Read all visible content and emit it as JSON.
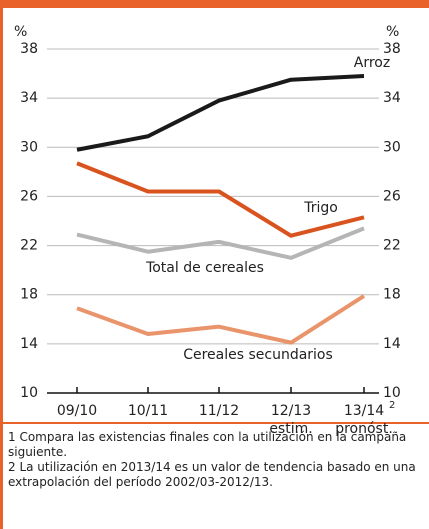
{
  "chart_data": {
    "type": "line",
    "y_label": "%",
    "y2_label": "%",
    "categories": [
      "09/10",
      "10/11",
      "11/12",
      "12/13",
      "13/14"
    ],
    "category_notes": [
      null,
      null,
      null,
      "estim.",
      "pronóst."
    ],
    "category_superscripts": [
      null,
      null,
      null,
      null,
      "2"
    ],
    "series": [
      {
        "name": "Arroz",
        "color": "#1a1a1a",
        "values": [
          29.8,
          30.9,
          33.8,
          35.5,
          35.8
        ]
      },
      {
        "name": "Trigo",
        "color": "#d9531e",
        "values": [
          28.7,
          26.4,
          26.4,
          22.8,
          24.3
        ]
      },
      {
        "name": "Total de cereales",
        "color": "#b5b5b5",
        "values": [
          22.9,
          21.5,
          22.3,
          21.0,
          23.4
        ]
      },
      {
        "name": "Cereales secundarios",
        "color": "#e9946b",
        "values": [
          16.9,
          14.8,
          15.4,
          14.1,
          17.9
        ]
      }
    ],
    "ylim": [
      10,
      38
    ],
    "yticks": [
      10,
      14,
      18,
      22,
      26,
      30,
      34,
      38
    ],
    "y2lim": [
      10,
      38
    ],
    "y2ticks": [
      10,
      14,
      18,
      22,
      26,
      30,
      34,
      38
    ],
    "grid": true,
    "footnotes": [
      "1 Compara las existencias finales con la utilización en la campaña siguiente.",
      "2 La utilización en 2013/14 es un valor de tendencia basado en una extrapolación del período 2002/03-2012/13."
    ]
  }
}
